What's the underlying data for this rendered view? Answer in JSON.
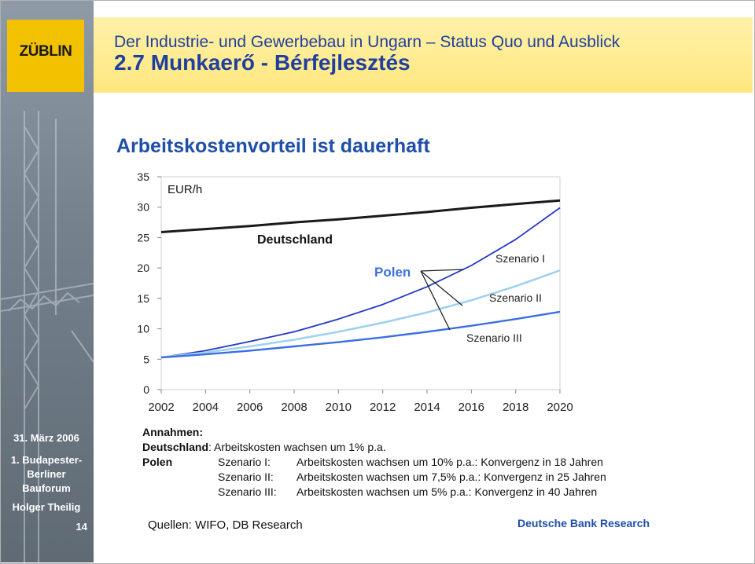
{
  "header": {
    "logo": "ZÜBLIN",
    "line1": "Der Industrie- und Gewerbebau in Ungarn – Status Quo und Ausblick",
    "line2": "2.7 Munkaerő - Bérfejlesztés"
  },
  "sidebar": {
    "date": "31. März 2006",
    "event_line1": "1. Budapester-",
    "event_line2": "Berliner",
    "event_line3": "Bauforum",
    "presenter": "Holger Theilig",
    "page": "14"
  },
  "colors": {
    "deutschland": "#1a1a1a",
    "szenario_i": "#2436c8",
    "szenario_ii": "#9fd2f0",
    "szenario_iii": "#3a6fe0",
    "title": "#1f4fa8",
    "header_text": "#1f3f9f",
    "header_band": "#ffe780",
    "logo": "#f2c200"
  },
  "chart_data": {
    "type": "line",
    "title": "Arbeitskostenvorteil ist dauerhaft",
    "ylabel": "EUR/h",
    "ylim": [
      0,
      35
    ],
    "yticks": [
      "0",
      "5",
      "10",
      "15",
      "20",
      "25",
      "30",
      "35"
    ],
    "xlim": [
      2002,
      2020
    ],
    "xticks": [
      "2002",
      "2004",
      "2006",
      "2008",
      "2010",
      "2012",
      "2014",
      "2016",
      "2018",
      "2020"
    ],
    "grid": false,
    "annotations": [
      "Deutschland",
      "Polen",
      "Szenario I",
      "Szenario II",
      "Szenario III"
    ],
    "series": [
      {
        "name": "Deutschland",
        "x": [
          2002,
          2004,
          2006,
          2008,
          2010,
          2012,
          2014,
          2016,
          2018,
          2020
        ],
        "values": [
          25.9,
          26.4,
          26.9,
          27.5,
          28.0,
          28.6,
          29.2,
          29.9,
          30.5,
          31.1
        ]
      },
      {
        "name": "Szenario I",
        "x": [
          2002,
          2004,
          2006,
          2008,
          2010,
          2012,
          2014,
          2016,
          2018,
          2020
        ],
        "values": [
          5.3,
          6.4,
          7.9,
          9.5,
          11.6,
          14.0,
          16.9,
          20.4,
          24.7,
          29.9
        ]
      },
      {
        "name": "Szenario II",
        "x": [
          2002,
          2004,
          2006,
          2008,
          2010,
          2012,
          2014,
          2016,
          2018,
          2020
        ],
        "values": [
          5.3,
          6.1,
          7.1,
          8.2,
          9.5,
          11.0,
          12.7,
          14.7,
          17.0,
          19.6
        ]
      },
      {
        "name": "Szenario III",
        "x": [
          2002,
          2004,
          2006,
          2008,
          2010,
          2012,
          2014,
          2016,
          2018,
          2020
        ],
        "values": [
          5.3,
          5.8,
          6.4,
          7.1,
          7.8,
          8.6,
          9.5,
          10.5,
          11.6,
          12.8
        ]
      }
    ]
  },
  "notes": {
    "heading": "Annahmen:",
    "de_label": "Deutschland",
    "de_text": ": Arbeitskosten wachsen um 1% p.a.",
    "pl_label": "Polen",
    "rows": [
      {
        "scenario": "Szenario I:",
        "text": "Arbeitskosten wachsen um 10% p.a.: Konvergenz in 18 Jahren"
      },
      {
        "scenario": "Szenario II:",
        "text": "Arbeitskosten wachsen um 7,5% p.a.: Konvergenz in 25 Jahren"
      },
      {
        "scenario": "Szenario III:",
        "text": "Arbeitskosten wachsen um 5% p.a.: Konvergenz in 40 Jahren"
      }
    ],
    "source": "Quellen: WIFO, DB Research",
    "brand": "Deutsche Bank Research"
  }
}
